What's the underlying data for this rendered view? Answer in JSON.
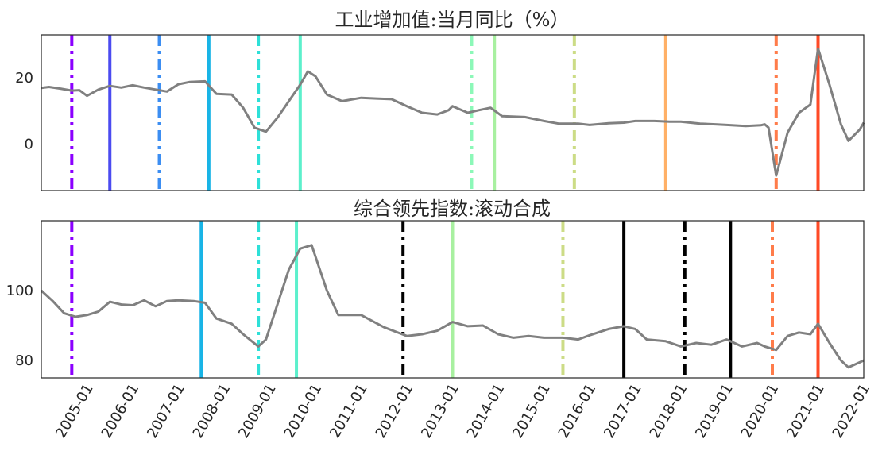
{
  "chart_data": [
    {
      "type": "line",
      "title": "工业增加值:当月同比（%）",
      "ylim": [
        -14,
        33
      ],
      "yticks": [
        0,
        20
      ],
      "grid": false,
      "series": [
        {
          "color": "#808080",
          "points": [
            [
              "2004-01",
              17
            ],
            [
              "2004-03",
              17.3
            ],
            [
              "2004-06",
              16.8
            ],
            [
              "2004-09",
              16.2
            ],
            [
              "2004-11",
              16.3
            ],
            [
              "2005-01",
              14.6
            ],
            [
              "2005-04",
              16.5
            ],
            [
              "2005-07",
              17.6
            ],
            [
              "2005-10",
              17.1
            ],
            [
              "2006-01",
              17.8
            ],
            [
              "2006-04",
              17.1
            ],
            [
              "2006-07",
              16.5
            ],
            [
              "2006-10",
              15.9
            ],
            [
              "2007-01",
              18.1
            ],
            [
              "2007-04",
              18.8
            ],
            [
              "2007-08",
              19.0
            ],
            [
              "2007-11",
              15.2
            ],
            [
              "2008-03",
              15.0
            ],
            [
              "2008-06",
              11.0
            ],
            [
              "2008-09",
              5.0
            ],
            [
              "2008-12",
              3.8
            ],
            [
              "2009-03",
              8.0
            ],
            [
              "2009-06",
              13.0
            ],
            [
              "2009-09",
              18.0
            ],
            [
              "2009-11",
              22.0
            ],
            [
              "2010-01",
              20.5
            ],
            [
              "2010-04",
              15.0
            ],
            [
              "2010-08",
              13.0
            ],
            [
              "2011-01",
              14.0
            ],
            [
              "2011-05",
              13.8
            ],
            [
              "2011-09",
              13.6
            ],
            [
              "2012-01",
              11.5
            ],
            [
              "2012-05",
              9.5
            ],
            [
              "2012-09",
              9.0
            ],
            [
              "2012-12",
              10.3
            ],
            [
              "2013-01",
              11.5
            ],
            [
              "2013-05",
              9.5
            ],
            [
              "2013-08",
              10.3
            ],
            [
              "2013-11",
              11.0
            ],
            [
              "2014-02",
              8.5
            ],
            [
              "2014-08",
              8.2
            ],
            [
              "2015-01",
              7.0
            ],
            [
              "2015-05",
              6.2
            ],
            [
              "2015-10",
              6.2
            ],
            [
              "2016-01",
              5.8
            ],
            [
              "2016-06",
              6.3
            ],
            [
              "2016-10",
              6.5
            ],
            [
              "2017-01",
              7.0
            ],
            [
              "2017-06",
              7.0
            ],
            [
              "2017-10",
              6.8
            ],
            [
              "2018-01",
              6.8
            ],
            [
              "2018-06",
              6.2
            ],
            [
              "2018-10",
              6.0
            ],
            [
              "2019-01",
              5.8
            ],
            [
              "2019-06",
              5.5
            ],
            [
              "2019-10",
              5.7
            ],
            [
              "2019-11",
              6.0
            ],
            [
              "2019-12",
              5.0
            ],
            [
              "2020-02",
              -9.5
            ],
            [
              "2020-05",
              3.5
            ],
            [
              "2020-08",
              9.5
            ],
            [
              "2020-11",
              12.0
            ],
            [
              "2021-01",
              28.9
            ],
            [
              "2021-04",
              18.0
            ],
            [
              "2021-07",
              6.0
            ],
            [
              "2021-09",
              1.0
            ],
            [
              "2021-12",
              4.5
            ],
            [
              "2022-01",
              6.5
            ]
          ]
        }
      ],
      "vlines": [
        {
          "x": "2004-09",
          "style": "dashdot",
          "color": "#8b00ff"
        },
        {
          "x": "2005-07",
          "style": "solid",
          "color": "#4b4bf0"
        },
        {
          "x": "2006-08",
          "style": "dashdot",
          "color": "#3c8ef2"
        },
        {
          "x": "2007-09",
          "style": "solid",
          "color": "#18b4e6"
        },
        {
          "x": "2008-10",
          "style": "dashdot",
          "color": "#2ee0d8"
        },
        {
          "x": "2009-09",
          "style": "solid",
          "color": "#5cf0cc"
        },
        {
          "x": "2013-06",
          "style": "dashdot",
          "color": "#8cf8b8"
        },
        {
          "x": "2013-12",
          "style": "solid",
          "color": "#a8f0a0"
        },
        {
          "x": "2015-09",
          "style": "dashdot",
          "color": "#ccdc86"
        },
        {
          "x": "2017-09",
          "style": "solid",
          "color": "#ffb066"
        },
        {
          "x": "2020-02",
          "style": "dashdot",
          "color": "#ff7c4a"
        },
        {
          "x": "2021-01",
          "style": "solid",
          "color": "#ff4a26"
        }
      ]
    },
    {
      "type": "line",
      "title": "综合领先指数:滚动合成",
      "ylim": [
        75,
        120
      ],
      "yticks": [
        80,
        100
      ],
      "grid": false,
      "xticks": [
        "2005-01",
        "2006-01",
        "2007-01",
        "2008-01",
        "2009-01",
        "2010-01",
        "2011-01",
        "2012-01",
        "2013-01",
        "2014-01",
        "2015-01",
        "2016-01",
        "2017-01",
        "2018-01",
        "2019-01",
        "2020-01",
        "2021-01",
        "2022-01"
      ],
      "xlim": [
        "2004-01",
        "2022-01"
      ],
      "series": [
        {
          "color": "#808080",
          "points": [
            [
              "2004-01",
              100
            ],
            [
              "2004-04",
              97
            ],
            [
              "2004-07",
              93.5
            ],
            [
              "2004-10",
              92.5
            ],
            [
              "2005-01",
              93.0
            ],
            [
              "2005-04",
              94.0
            ],
            [
              "2005-07",
              96.8
            ],
            [
              "2005-10",
              96.0
            ],
            [
              "2006-01",
              95.8
            ],
            [
              "2006-04",
              97.2
            ],
            [
              "2006-07",
              95.5
            ],
            [
              "2006-10",
              97.0
            ],
            [
              "2007-01",
              97.2
            ],
            [
              "2007-05",
              97.0
            ],
            [
              "2007-08",
              96.5
            ],
            [
              "2007-11",
              92.0
            ],
            [
              "2008-03",
              90.5
            ],
            [
              "2008-06",
              87.5
            ],
            [
              "2008-10",
              84.0
            ],
            [
              "2008-12",
              86.0
            ],
            [
              "2009-03",
              96.0
            ],
            [
              "2009-06",
              106.0
            ],
            [
              "2009-09",
              112.0
            ],
            [
              "2009-12",
              113.0
            ],
            [
              "2010-04",
              100.0
            ],
            [
              "2010-07",
              93.0
            ],
            [
              "2011-01",
              93.0
            ],
            [
              "2011-07",
              89.5
            ],
            [
              "2012-01",
              87.0
            ],
            [
              "2012-05",
              87.5
            ],
            [
              "2012-09",
              88.5
            ],
            [
              "2013-01",
              91.0
            ],
            [
              "2013-05",
              89.8
            ],
            [
              "2013-09",
              90.0
            ],
            [
              "2014-01",
              87.5
            ],
            [
              "2014-05",
              86.5
            ],
            [
              "2014-09",
              87.0
            ],
            [
              "2015-01",
              86.5
            ],
            [
              "2015-06",
              86.5
            ],
            [
              "2015-10",
              86.0
            ],
            [
              "2016-01",
              87.2
            ],
            [
              "2016-06",
              89.0
            ],
            [
              "2016-10",
              89.8
            ],
            [
              "2017-01",
              89.0
            ],
            [
              "2017-04",
              86.0
            ],
            [
              "2017-09",
              85.5
            ],
            [
              "2018-01",
              84.0
            ],
            [
              "2018-05",
              85.0
            ],
            [
              "2018-09",
              84.5
            ],
            [
              "2019-01",
              86.0
            ],
            [
              "2019-05",
              84.0
            ],
            [
              "2019-09",
              85.0
            ],
            [
              "2019-11",
              84.0
            ],
            [
              "2020-02",
              83.0
            ],
            [
              "2020-05",
              87.0
            ],
            [
              "2020-08",
              88.0
            ],
            [
              "2020-11",
              87.5
            ],
            [
              "2021-01",
              90.5
            ],
            [
              "2021-04",
              85.0
            ],
            [
              "2021-07",
              80.0
            ],
            [
              "2021-09",
              78.0
            ],
            [
              "2021-12",
              79.5
            ],
            [
              "2022-01",
              80.0
            ]
          ]
        }
      ],
      "vlines": [
        {
          "x": "2004-09",
          "style": "dashdot",
          "color": "#8b00ff"
        },
        {
          "x": "2007-07",
          "style": "solid",
          "color": "#18b4e6"
        },
        {
          "x": "2008-10",
          "style": "dashdot",
          "color": "#2ee0d8"
        },
        {
          "x": "2009-08",
          "style": "solid",
          "color": "#5cf0cc"
        },
        {
          "x": "2011-12",
          "style": "dashdot",
          "color": "#000000"
        },
        {
          "x": "2013-01",
          "style": "solid",
          "color": "#a8f0a0"
        },
        {
          "x": "2015-06",
          "style": "dashdot",
          "color": "#ccdc86"
        },
        {
          "x": "2016-10",
          "style": "solid",
          "color": "#000000"
        },
        {
          "x": "2018-02",
          "style": "dashdot",
          "color": "#000000"
        },
        {
          "x": "2019-02",
          "style": "solid",
          "color": "#000000"
        },
        {
          "x": "2020-01",
          "style": "dashdot",
          "color": "#ff7c4a"
        },
        {
          "x": "2021-01",
          "style": "solid",
          "color": "#ff4a26"
        }
      ]
    }
  ]
}
